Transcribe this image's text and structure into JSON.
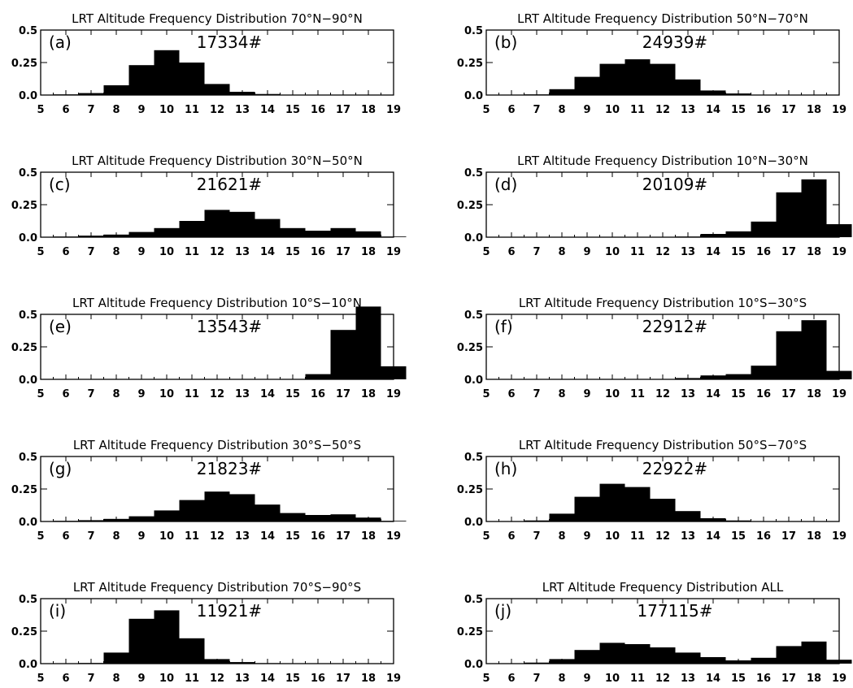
{
  "chart_data": [
    {
      "type": "bar",
      "panel": "(a)",
      "title": "LRT Altitude Frequency Distribution 70°N-90°N",
      "count": "17334#",
      "ylim": [
        0,
        0.5
      ],
      "yticks": [
        "0.5",
        "0.25",
        "0.0"
      ],
      "xticks": [
        "5",
        "6",
        "7",
        "8",
        "9",
        "10",
        "11",
        "12",
        "13",
        "14",
        "15",
        "16",
        "17",
        "18",
        "19"
      ],
      "bin_starts": [
        5,
        6,
        7,
        8,
        9,
        10,
        11,
        12,
        13,
        14,
        15,
        16,
        17,
        18
      ],
      "values": [
        0.005,
        0.015,
        0.075,
        0.23,
        0.345,
        0.25,
        0.085,
        0.025,
        0.008,
        0.002,
        0,
        0,
        0,
        0
      ]
    },
    {
      "type": "bar",
      "panel": "(b)",
      "title": "LRT Altitude Frequency Distribution 50°N-70°N",
      "count": "24939#",
      "ylim": [
        0,
        0.5
      ],
      "yticks": [
        "0.5",
        "0.25",
        "0.0"
      ],
      "xticks": [
        "5",
        "6",
        "7",
        "8",
        "9",
        "10",
        "11",
        "12",
        "13",
        "14",
        "15",
        "16",
        "17",
        "18",
        "19"
      ],
      "bin_starts": [
        5,
        6,
        7,
        8,
        9,
        10,
        11,
        12,
        13,
        14,
        15,
        16,
        17,
        18
      ],
      "values": [
        0,
        0.005,
        0.045,
        0.14,
        0.24,
        0.275,
        0.24,
        0.12,
        0.035,
        0.012,
        0.002,
        0,
        0,
        0
      ]
    },
    {
      "type": "bar",
      "panel": "(c)",
      "title": "LRT Altitude Frequency Distribution 30°N-50°N",
      "count": "21621#",
      "ylim": [
        0,
        0.5
      ],
      "yticks": [
        "0.5",
        "0.25",
        "0.0"
      ],
      "xticks": [
        "5",
        "6",
        "7",
        "8",
        "9",
        "10",
        "11",
        "12",
        "13",
        "14",
        "15",
        "16",
        "17",
        "18",
        "19"
      ],
      "bin_starts": [
        5,
        6,
        7,
        8,
        9,
        10,
        11,
        12,
        13,
        14,
        15,
        16,
        17,
        18
      ],
      "values": [
        0.005,
        0.012,
        0.02,
        0.04,
        0.07,
        0.125,
        0.21,
        0.195,
        0.14,
        0.07,
        0.05,
        0.07,
        0.045,
        0.005
      ]
    },
    {
      "type": "bar",
      "panel": "(d)",
      "title": "LRT Altitude Frequency Distribution 10°N-30°N",
      "count": "20109#",
      "ylim": [
        0,
        0.5
      ],
      "yticks": [
        "0.5",
        "0.25",
        "0.0"
      ],
      "xticks": [
        "5",
        "6",
        "7",
        "8",
        "9",
        "10",
        "11",
        "12",
        "13",
        "14",
        "15",
        "16",
        "17",
        "18",
        "19"
      ],
      "bin_starts": [
        5,
        6,
        7,
        8,
        9,
        10,
        11,
        12,
        13,
        14,
        15,
        16,
        17,
        18
      ],
      "values": [
        0,
        0,
        0,
        0,
        0,
        0,
        0,
        0.005,
        0.025,
        0.045,
        0.12,
        0.345,
        0.445,
        0.1
      ]
    },
    {
      "type": "bar",
      "panel": "(e)",
      "title": "LRT Altitude Frequency Distribution 10°S-10°N",
      "count": "13543#",
      "ylim": [
        0,
        0.5
      ],
      "yticks": [
        "0.5",
        "0.25",
        "0.0"
      ],
      "xticks": [
        "5",
        "6",
        "7",
        "8",
        "9",
        "10",
        "11",
        "12",
        "13",
        "14",
        "15",
        "16",
        "17",
        "18",
        "19"
      ],
      "bin_starts": [
        5,
        6,
        7,
        8,
        9,
        10,
        11,
        12,
        13,
        14,
        15,
        16,
        17,
        18
      ],
      "values": [
        0,
        0,
        0,
        0,
        0,
        0,
        0,
        0,
        0,
        0,
        0.04,
        0.38,
        0.56,
        0.1
      ]
    },
    {
      "type": "bar",
      "panel": "(f)",
      "title": "LRT Altitude Frequency Distribution 10°S-30°S",
      "count": "22912#",
      "ylim": [
        0,
        0.5
      ],
      "yticks": [
        "0.5",
        "0.25",
        "0.0"
      ],
      "xticks": [
        "5",
        "6",
        "7",
        "8",
        "9",
        "10",
        "11",
        "12",
        "13",
        "14",
        "15",
        "16",
        "17",
        "18",
        "19"
      ],
      "bin_starts": [
        5,
        6,
        7,
        8,
        9,
        10,
        11,
        12,
        13,
        14,
        15,
        16,
        17,
        18
      ],
      "values": [
        0,
        0,
        0,
        0,
        0,
        0,
        0,
        0.01,
        0.03,
        0.04,
        0.105,
        0.37,
        0.455,
        0.065
      ]
    },
    {
      "type": "bar",
      "panel": "(g)",
      "title": "LRT Altitude Frequency Distribution 30°S-50°S",
      "count": "21823#",
      "ylim": [
        0,
        0.5
      ],
      "yticks": [
        "0.5",
        "0.25",
        "0.0"
      ],
      "xticks": [
        "5",
        "6",
        "7",
        "8",
        "9",
        "10",
        "11",
        "12",
        "13",
        "14",
        "15",
        "16",
        "17",
        "18",
        "19"
      ],
      "bin_starts": [
        5,
        6,
        7,
        8,
        9,
        10,
        11,
        12,
        13,
        14,
        15,
        16,
        17,
        18
      ],
      "values": [
        0.005,
        0.01,
        0.02,
        0.04,
        0.085,
        0.165,
        0.23,
        0.21,
        0.13,
        0.065,
        0.05,
        0.055,
        0.03,
        0.005
      ]
    },
    {
      "type": "bar",
      "panel": "(h)",
      "title": "LRT Altitude Frequency Distribution 50°S-70°S",
      "count": "22922#",
      "ylim": [
        0,
        0.5
      ],
      "yticks": [
        "0.5",
        "0.25",
        "0.0"
      ],
      "xticks": [
        "5",
        "6",
        "7",
        "8",
        "9",
        "10",
        "11",
        "12",
        "13",
        "14",
        "15",
        "16",
        "17",
        "18",
        "19"
      ],
      "bin_starts": [
        5,
        6,
        7,
        8,
        9,
        10,
        11,
        12,
        13,
        14,
        15,
        16,
        17,
        18
      ],
      "values": [
        0,
        0.008,
        0.06,
        0.19,
        0.29,
        0.265,
        0.175,
        0.08,
        0.025,
        0.008,
        0.002,
        0,
        0,
        0
      ]
    },
    {
      "type": "bar",
      "panel": "(i)",
      "title": "LRT Altitude Frequency Distribution 70°S-90°S",
      "count": "11921#",
      "ylim": [
        0,
        0.5
      ],
      "yticks": [
        "0.5",
        "0.25",
        "0.0"
      ],
      "xticks": [
        "5",
        "6",
        "7",
        "8",
        "9",
        "10",
        "11",
        "12",
        "13",
        "14",
        "15",
        "16",
        "17",
        "18",
        "19"
      ],
      "bin_starts": [
        5,
        6,
        7,
        8,
        9,
        10,
        11,
        12,
        13,
        14,
        15,
        16,
        17,
        18
      ],
      "values": [
        0,
        0.005,
        0.085,
        0.345,
        0.41,
        0.195,
        0.035,
        0.012,
        0.004,
        0,
        0,
        0,
        0,
        0
      ]
    },
    {
      "type": "bar",
      "panel": "(j)",
      "title": "LRT Altitude Frequency Distribution ALL",
      "count": "177115#",
      "ylim": [
        0,
        0.5
      ],
      "yticks": [
        "0.5",
        "0.25",
        "0.0"
      ],
      "xticks": [
        "5",
        "6",
        "7",
        "8",
        "9",
        "10",
        "11",
        "12",
        "13",
        "14",
        "15",
        "16",
        "17",
        "18",
        "19"
      ],
      "bin_starts": [
        5,
        6,
        7,
        8,
        9,
        10,
        11,
        12,
        13,
        14,
        15,
        16,
        17,
        18
      ],
      "values": [
        0.002,
        0.008,
        0.035,
        0.105,
        0.16,
        0.15,
        0.125,
        0.085,
        0.05,
        0.025,
        0.045,
        0.135,
        0.17,
        0.03
      ]
    }
  ],
  "style": {
    "bar_color": "#000000",
    "axis_color": "#000000",
    "background": "#ffffff"
  }
}
